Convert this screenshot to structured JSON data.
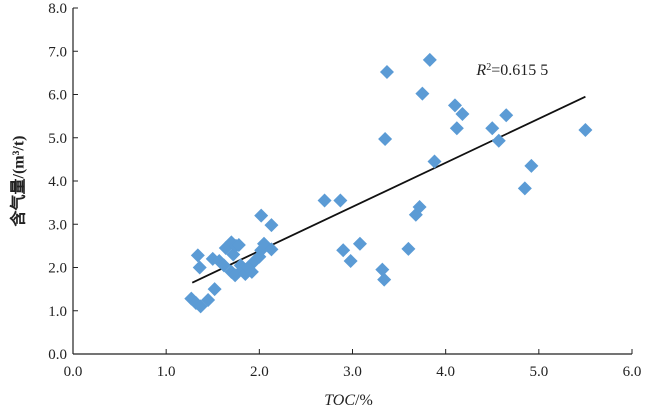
{
  "chart_data": {
    "type": "scatter",
    "xlabel_italic": "TOC",
    "xlabel_rest": "/%",
    "ylabel": "含气量/(m³/t)",
    "xlim": [
      0,
      6
    ],
    "ylim": [
      0,
      8
    ],
    "xticks": [
      "0.0",
      "1.0",
      "2.0",
      "3.0",
      "4.0",
      "5.0",
      "6.0"
    ],
    "yticks": [
      "0.0",
      "1.0",
      "2.0",
      "3.0",
      "4.0",
      "5.0",
      "6.0",
      "7.0",
      "8.0"
    ],
    "grid": false,
    "marker": "diamond",
    "marker_color": "#5b9bd5",
    "trendline_color": "#111111",
    "points": [
      [
        1.27,
        1.28
      ],
      [
        1.32,
        1.18
      ],
      [
        1.37,
        1.1
      ],
      [
        1.45,
        1.25
      ],
      [
        1.52,
        1.5
      ],
      [
        1.34,
        2.28
      ],
      [
        1.36,
        2.0
      ],
      [
        1.5,
        2.2
      ],
      [
        1.57,
        2.15
      ],
      [
        1.62,
        2.05
      ],
      [
        1.64,
        2.45
      ],
      [
        1.7,
        2.58
      ],
      [
        1.72,
        2.3
      ],
      [
        1.75,
        2.5
      ],
      [
        1.78,
        2.52
      ],
      [
        1.7,
        1.9
      ],
      [
        1.74,
        1.82
      ],
      [
        1.8,
        2.05
      ],
      [
        1.82,
        1.95
      ],
      [
        1.85,
        1.85
      ],
      [
        1.88,
        2.0
      ],
      [
        1.92,
        1.9
      ],
      [
        1.95,
        2.15
      ],
      [
        2.0,
        2.25
      ],
      [
        2.02,
        2.4
      ],
      [
        2.05,
        2.55
      ],
      [
        2.02,
        3.2
      ],
      [
        2.13,
        2.98
      ],
      [
        2.13,
        2.42
      ],
      [
        2.7,
        3.55
      ],
      [
        2.87,
        3.55
      ],
      [
        2.9,
        2.4
      ],
      [
        2.98,
        2.15
      ],
      [
        3.08,
        2.55
      ],
      [
        3.32,
        1.95
      ],
      [
        3.34,
        1.72
      ],
      [
        3.35,
        4.97
      ],
      [
        3.37,
        6.52
      ],
      [
        3.6,
        2.43
      ],
      [
        3.68,
        3.22
      ],
      [
        3.72,
        3.4
      ],
      [
        3.75,
        6.02
      ],
      [
        3.83,
        6.8
      ],
      [
        3.88,
        4.45
      ],
      [
        4.1,
        5.75
      ],
      [
        4.12,
        5.22
      ],
      [
        4.18,
        5.55
      ],
      [
        4.5,
        5.22
      ],
      [
        4.57,
        4.93
      ],
      [
        4.65,
        5.52
      ],
      [
        4.85,
        3.83
      ],
      [
        4.92,
        4.35
      ],
      [
        5.5,
        5.18
      ]
    ],
    "trendline": {
      "x": [
        1.28,
        5.5
      ],
      "y": [
        1.65,
        5.95
      ]
    },
    "annotation": {
      "r_italic": "R",
      "sup": "2",
      "rest": "=0.615 5",
      "x": 4.33,
      "y": 6.45
    }
  }
}
